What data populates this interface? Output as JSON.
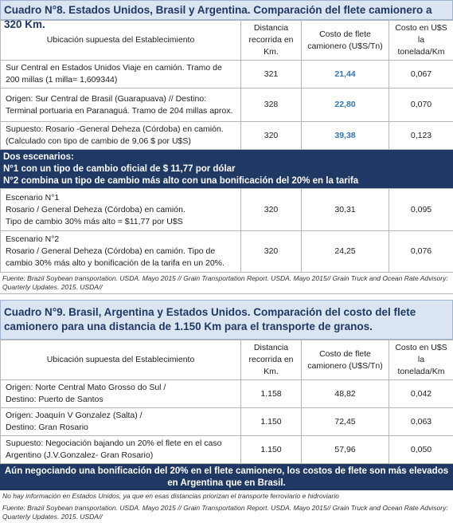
{
  "table_1": {
    "title": "Cuadro N°8. Estados Unidos, Brasil y Argentina. Comparación del flete camionero a 320 Km.",
    "header": [
      "Ubicación supuesta del Establecimiento",
      "Distancia recorrida en Km.",
      "Costo de flete camionero (U$S/Tn)",
      "Costo en U$S la tonelada/Km"
    ],
    "rows": [
      [
        "Sur Central en Estados Unidos Viaje en camión. Tramo de 200 millas (1 milla= 1,609344)",
        "321",
        "21,44",
        "0,067"
      ],
      [
        "Origen: Sur Central de Brasil (Guarapuava) // Destino: Terminal portuaria en Paranaguá. Tramo de 204 millas aprox.",
        "328",
        "22,80",
        "0,070"
      ],
      [
        "Supuesto: Rosario -General Deheza (Córdoba) en camión. (Calculado con tipo de cambio de 9,06 $ por U$S)",
        "320",
        "39,38",
        "0,123"
      ]
    ],
    "scenarios_note": [
      "Dos escenarios:",
      "N°1 con un tipo de cambio oficial de $ 11,77 por dólar",
      "N°2 combina un tipo de cambio más alto con una bonificación del 20% en la tarifa"
    ],
    "scenario_rows": [
      [
        [
          "Escenario N°1",
          "Rosario / General Deheza (Córdoba) en camión.",
          "Tipo de cambio 30% más alto = $11,77 por U$S"
        ],
        "320",
        "30,31",
        "0,095"
      ],
      [
        [
          "Escenario N°2",
          "Rosario / General Deheza (Córdoba) en camión. Tipo de cambio 30% más alto y bonificación de la tarifa en un 20%."
        ],
        "320",
        "24,25",
        "0,076"
      ]
    ],
    "source": "Fuente: Brazil Soybean transportation. USDA. Mayo 2015 // Grain Transportation Report. USDA. Mayo 2015// Grain Truck and Ocean Rate Advisory: Quarterly Updates. 2015. USDA//"
  },
  "table_2": {
    "title": "Cuadro N°9. Brasil, Argentina y Estados Unidos. Comparación del costo del flete camionero para una distancia de 1.150 Km para el transporte de granos.",
    "header": [
      "Ubicación supuesta del Establecimiento",
      "Distancia recorrida en Km.",
      "Costo de flete camionero (U$S/Tn)",
      "Costo en U$S la tonelada/Km"
    ],
    "rows": [
      [
        [
          "Origen: Norte Central Mato Grosso do Sul /",
          "Destino: Puerto de Santos"
        ],
        "1.158",
        "48,82",
        "0,042"
      ],
      [
        [
          "Origen: Joaquín V Gonzalez (Salta) /",
          "Destino: Gran Rosario"
        ],
        "1.150",
        "72,45",
        "0,063"
      ],
      [
        "Supuesto: Negociación bajando un 20% el flete en el caso Argentino (J.V.Gonzalez- Gran Rosario)",
        "1.150",
        "57,96",
        "0,050"
      ]
    ],
    "conclusion": "Aún negociando una bonificación del 20% en el flete camionero, los costos de flete son más elevados en Argentina que en Brasil.",
    "notes": [
      "No hay información en Estados Unidos, ya que en esas distancias priorizan el transporte ferroviario e hidroviario",
      "Fuente: Brazil Soybean transportation. USDA. Mayo 2015 // Grain Transportation Report. USDA. Mayo 2015// Grain Truck and Ocean Rate Advisory: Quarterly Updates. 2015. USDA//"
    ]
  }
}
